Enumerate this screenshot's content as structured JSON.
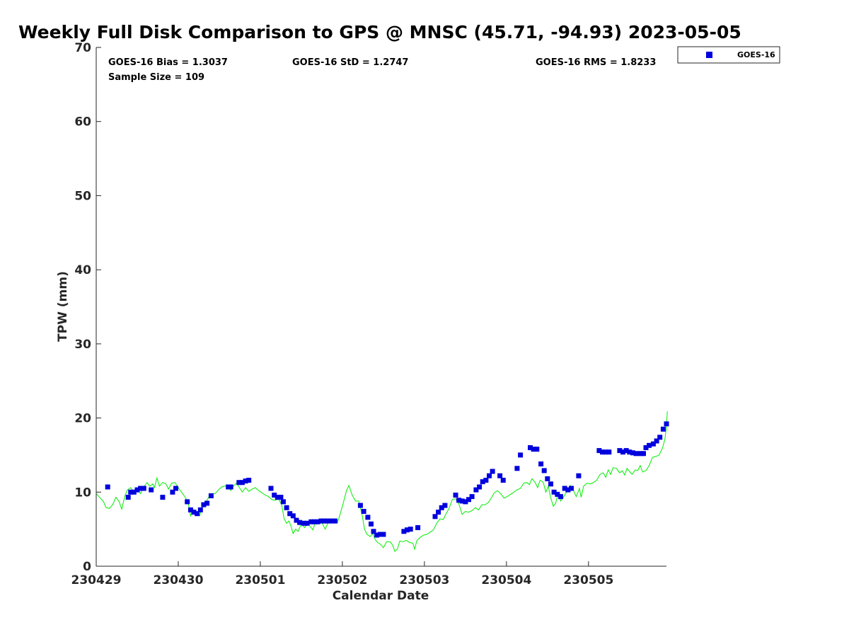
{
  "chart_data": {
    "type": "scatter",
    "title": "Weekly Full Disk Comparison to GPS @ MNSC (45.71, -94.93) 2023-05-05",
    "xlabel": "Calendar Date",
    "ylabel": "TPW (mm)",
    "xlim": [
      0,
      6.95
    ],
    "ylim": [
      0,
      70
    ],
    "yticks": [
      0,
      10,
      20,
      30,
      40,
      50,
      60,
      70
    ],
    "xtick_values": [
      0,
      1,
      2,
      3,
      4,
      5,
      6
    ],
    "xtick_labels": [
      "230429",
      "230430",
      "230501",
      "230502",
      "230503",
      "230504",
      "230505"
    ],
    "legend": {
      "position": "top-right, outside plot",
      "entries": [
        "GOES-16"
      ]
    },
    "stats": {
      "bias": "GOES-16 Bias = 1.3037",
      "std": "GOES-16 StD = 1.2747",
      "rms": "GOES-16 RMS = 1.8233",
      "sample": "Sample Size = 109"
    },
    "series": [
      {
        "name": "GOES-16",
        "kind": "scatter",
        "color": "#0000dd",
        "points": [
          [
            0.14,
            10.7
          ],
          [
            0.39,
            9.3
          ],
          [
            0.42,
            10.0
          ],
          [
            0.46,
            10.0
          ],
          [
            0.5,
            10.3
          ],
          [
            0.54,
            10.5
          ],
          [
            0.58,
            10.5
          ],
          [
            0.67,
            10.3
          ],
          [
            0.81,
            9.3
          ],
          [
            0.93,
            10.0
          ],
          [
            0.97,
            10.5
          ],
          [
            1.11,
            8.7
          ],
          [
            1.15,
            7.6
          ],
          [
            1.19,
            7.3
          ],
          [
            1.23,
            7.1
          ],
          [
            1.27,
            7.6
          ],
          [
            1.31,
            8.3
          ],
          [
            1.35,
            8.5
          ],
          [
            1.4,
            9.5
          ],
          [
            1.61,
            10.7
          ],
          [
            1.64,
            10.7
          ],
          [
            1.74,
            11.3
          ],
          [
            1.78,
            11.3
          ],
          [
            1.82,
            11.5
          ],
          [
            1.86,
            11.6
          ],
          [
            2.13,
            10.5
          ],
          [
            2.17,
            9.6
          ],
          [
            2.21,
            9.3
          ],
          [
            2.25,
            9.3
          ],
          [
            2.28,
            8.7
          ],
          [
            2.32,
            7.9
          ],
          [
            2.36,
            7.1
          ],
          [
            2.4,
            6.8
          ],
          [
            2.44,
            6.2
          ],
          [
            2.48,
            5.9
          ],
          [
            2.53,
            5.8
          ],
          [
            2.57,
            5.8
          ],
          [
            2.62,
            6.0
          ],
          [
            2.66,
            6.0
          ],
          [
            2.7,
            6.0
          ],
          [
            2.74,
            6.1
          ],
          [
            2.78,
            6.1
          ],
          [
            2.82,
            6.1
          ],
          [
            2.87,
            6.1
          ],
          [
            2.91,
            6.1
          ],
          [
            3.22,
            8.2
          ],
          [
            3.26,
            7.4
          ],
          [
            3.31,
            6.6
          ],
          [
            3.35,
            5.7
          ],
          [
            3.38,
            4.7
          ],
          [
            3.42,
            4.2
          ],
          [
            3.46,
            4.3
          ],
          [
            3.5,
            4.3
          ],
          [
            3.75,
            4.7
          ],
          [
            3.79,
            4.9
          ],
          [
            3.83,
            5.0
          ],
          [
            3.92,
            5.2
          ],
          [
            4.13,
            6.7
          ],
          [
            4.17,
            7.3
          ],
          [
            4.21,
            7.9
          ],
          [
            4.25,
            8.2
          ],
          [
            4.38,
            9.6
          ],
          [
            4.42,
            8.9
          ],
          [
            4.46,
            8.8
          ],
          [
            4.5,
            8.7
          ],
          [
            4.54,
            9.0
          ],
          [
            4.58,
            9.4
          ],
          [
            4.63,
            10.3
          ],
          [
            4.67,
            10.7
          ],
          [
            4.71,
            11.4
          ],
          [
            4.75,
            11.6
          ],
          [
            4.79,
            12.2
          ],
          [
            4.83,
            12.8
          ],
          [
            4.92,
            12.2
          ],
          [
            4.96,
            11.6
          ],
          [
            5.13,
            13.2
          ],
          [
            5.17,
            15.0
          ],
          [
            5.29,
            16.0
          ],
          [
            5.33,
            15.8
          ],
          [
            5.37,
            15.8
          ],
          [
            5.42,
            13.8
          ],
          [
            5.46,
            12.9
          ],
          [
            5.5,
            11.8
          ],
          [
            5.54,
            11.1
          ],
          [
            5.58,
            10.0
          ],
          [
            5.62,
            9.7
          ],
          [
            5.66,
            9.4
          ],
          [
            5.71,
            10.5
          ],
          [
            5.75,
            10.3
          ],
          [
            5.79,
            10.5
          ],
          [
            5.88,
            12.2
          ],
          [
            6.13,
            15.6
          ],
          [
            6.17,
            15.4
          ],
          [
            6.21,
            15.4
          ],
          [
            6.25,
            15.4
          ],
          [
            6.38,
            15.6
          ],
          [
            6.42,
            15.4
          ],
          [
            6.46,
            15.6
          ],
          [
            6.5,
            15.4
          ],
          [
            6.54,
            15.3
          ],
          [
            6.58,
            15.2
          ],
          [
            6.63,
            15.2
          ],
          [
            6.67,
            15.2
          ],
          [
            6.7,
            16.0
          ],
          [
            6.74,
            16.3
          ],
          [
            6.79,
            16.5
          ],
          [
            6.83,
            16.9
          ],
          [
            6.87,
            17.4
          ],
          [
            6.91,
            18.5
          ],
          [
            6.95,
            19.2
          ]
        ]
      },
      {
        "name": "GPS",
        "kind": "line",
        "color": "#00ee00",
        "points": [
          [
            0.0,
            9.8
          ],
          [
            0.05,
            9.2
          ],
          [
            0.09,
            8.7
          ],
          [
            0.12,
            7.9
          ],
          [
            0.16,
            7.8
          ],
          [
            0.2,
            8.3
          ],
          [
            0.24,
            9.3
          ],
          [
            0.28,
            8.7
          ],
          [
            0.31,
            7.7
          ],
          [
            0.35,
            9.5
          ],
          [
            0.38,
            10.3
          ],
          [
            0.42,
            10.6
          ],
          [
            0.46,
            10.0
          ],
          [
            0.5,
            10.4
          ],
          [
            0.54,
            9.8
          ],
          [
            0.58,
            10.7
          ],
          [
            0.62,
            11.3
          ],
          [
            0.65,
            10.8
          ],
          [
            0.69,
            11.1
          ],
          [
            0.71,
            10.6
          ],
          [
            0.74,
            11.9
          ],
          [
            0.77,
            10.8
          ],
          [
            0.81,
            11.3
          ],
          [
            0.85,
            11.1
          ],
          [
            0.88,
            10.4
          ],
          [
            0.92,
            11.2
          ],
          [
            0.96,
            11.3
          ],
          [
            1.0,
            10.6
          ],
          [
            1.04,
            10.0
          ],
          [
            1.08,
            9.4
          ],
          [
            1.12,
            8.6
          ],
          [
            1.15,
            6.8
          ],
          [
            1.18,
            7.6
          ],
          [
            1.22,
            6.9
          ],
          [
            1.26,
            6.8
          ],
          [
            1.29,
            7.9
          ],
          [
            1.33,
            8.5
          ],
          [
            1.37,
            9.3
          ],
          [
            1.41,
            9.8
          ],
          [
            1.45,
            9.8
          ],
          [
            1.49,
            10.3
          ],
          [
            1.53,
            10.7
          ],
          [
            1.56,
            10.8
          ],
          [
            1.6,
            10.9
          ],
          [
            1.64,
            10.2
          ],
          [
            1.67,
            10.8
          ],
          [
            1.71,
            11.2
          ],
          [
            1.74,
            10.7
          ],
          [
            1.78,
            10.0
          ],
          [
            1.82,
            10.6
          ],
          [
            1.86,
            10.1
          ],
          [
            1.9,
            10.4
          ],
          [
            1.94,
            10.6
          ],
          [
            1.98,
            10.2
          ],
          [
            2.02,
            9.9
          ],
          [
            2.06,
            9.6
          ],
          [
            2.1,
            9.4
          ],
          [
            2.14,
            9.0
          ],
          [
            2.18,
            8.9
          ],
          [
            2.22,
            9.1
          ],
          [
            2.26,
            8.3
          ],
          [
            2.29,
            6.4
          ],
          [
            2.32,
            5.8
          ],
          [
            2.35,
            6.1
          ],
          [
            2.38,
            5.2
          ],
          [
            2.4,
            4.4
          ],
          [
            2.43,
            5.0
          ],
          [
            2.46,
            4.7
          ],
          [
            2.5,
            5.7
          ],
          [
            2.54,
            5.2
          ],
          [
            2.58,
            5.8
          ],
          [
            2.62,
            5.2
          ],
          [
            2.64,
            4.9
          ],
          [
            2.67,
            5.9
          ],
          [
            2.71,
            6.0
          ],
          [
            2.75,
            5.9
          ],
          [
            2.79,
            5.0
          ],
          [
            2.82,
            5.7
          ],
          [
            2.86,
            6.3
          ],
          [
            2.9,
            6.0
          ],
          [
            2.94,
            5.9
          ],
          [
            2.97,
            6.9
          ],
          [
            3.01,
            8.5
          ],
          [
            3.05,
            10.2
          ],
          [
            3.08,
            10.9
          ],
          [
            3.12,
            9.6
          ],
          [
            3.16,
            8.8
          ],
          [
            3.2,
            8.8
          ],
          [
            3.24,
            7.0
          ],
          [
            3.27,
            5.0
          ],
          [
            3.3,
            4.3
          ],
          [
            3.34,
            4.0
          ],
          [
            3.37,
            4.4
          ],
          [
            3.4,
            3.6
          ],
          [
            3.43,
            3.2
          ],
          [
            3.46,
            3.0
          ],
          [
            3.5,
            2.5
          ],
          [
            3.54,
            3.3
          ],
          [
            3.58,
            3.3
          ],
          [
            3.61,
            2.9
          ],
          [
            3.64,
            2.0
          ],
          [
            3.67,
            2.3
          ],
          [
            3.7,
            3.4
          ],
          [
            3.74,
            3.3
          ],
          [
            3.78,
            3.5
          ],
          [
            3.82,
            3.2
          ],
          [
            3.86,
            3.1
          ],
          [
            3.88,
            2.3
          ],
          [
            3.91,
            3.5
          ],
          [
            3.95,
            3.9
          ],
          [
            3.99,
            4.2
          ],
          [
            4.03,
            4.3
          ],
          [
            4.07,
            4.6
          ],
          [
            4.11,
            4.9
          ],
          [
            4.15,
            5.8
          ],
          [
            4.19,
            6.4
          ],
          [
            4.23,
            6.3
          ],
          [
            4.26,
            7.0
          ],
          [
            4.3,
            7.8
          ],
          [
            4.34,
            9.0
          ],
          [
            4.38,
            9.1
          ],
          [
            4.42,
            8.4
          ],
          [
            4.46,
            7.0
          ],
          [
            4.5,
            7.4
          ],
          [
            4.54,
            7.3
          ],
          [
            4.58,
            7.5
          ],
          [
            4.62,
            7.9
          ],
          [
            4.66,
            7.6
          ],
          [
            4.7,
            8.3
          ],
          [
            4.74,
            8.3
          ],
          [
            4.78,
            8.6
          ],
          [
            4.82,
            9.3
          ],
          [
            4.85,
            9.9
          ],
          [
            4.89,
            10.2
          ],
          [
            4.93,
            9.8
          ],
          [
            4.97,
            9.2
          ],
          [
            5.01,
            9.4
          ],
          [
            5.05,
            9.7
          ],
          [
            5.09,
            10.0
          ],
          [
            5.13,
            10.3
          ],
          [
            5.17,
            10.5
          ],
          [
            5.21,
            11.2
          ],
          [
            5.25,
            11.3
          ],
          [
            5.28,
            11.0
          ],
          [
            5.31,
            11.8
          ],
          [
            5.35,
            11.3
          ],
          [
            5.38,
            10.6
          ],
          [
            5.41,
            11.6
          ],
          [
            5.45,
            11.3
          ],
          [
            5.48,
            10.0
          ],
          [
            5.51,
            10.8
          ],
          [
            5.54,
            9.2
          ],
          [
            5.57,
            8.1
          ],
          [
            5.6,
            8.5
          ],
          [
            5.63,
            9.8
          ],
          [
            5.66,
            8.8
          ],
          [
            5.7,
            9.4
          ],
          [
            5.74,
            10.2
          ],
          [
            5.78,
            10.9
          ],
          [
            5.81,
            10.4
          ],
          [
            5.85,
            9.4
          ],
          [
            5.89,
            10.5
          ],
          [
            5.91,
            9.3
          ],
          [
            5.94,
            10.8
          ],
          [
            5.98,
            11.2
          ],
          [
            6.02,
            11.1
          ],
          [
            6.06,
            11.3
          ],
          [
            6.1,
            11.6
          ],
          [
            6.14,
            12.4
          ],
          [
            6.18,
            12.6
          ],
          [
            6.21,
            12.0
          ],
          [
            6.24,
            13.0
          ],
          [
            6.27,
            12.4
          ],
          [
            6.3,
            13.3
          ],
          [
            6.34,
            13.2
          ],
          [
            6.38,
            12.6
          ],
          [
            6.41,
            12.9
          ],
          [
            6.44,
            12.3
          ],
          [
            6.47,
            13.2
          ],
          [
            6.5,
            12.8
          ],
          [
            6.53,
            12.4
          ],
          [
            6.57,
            13.0
          ],
          [
            6.6,
            12.9
          ],
          [
            6.63,
            13.6
          ],
          [
            6.66,
            12.7
          ],
          [
            6.7,
            12.9
          ],
          [
            6.74,
            13.6
          ],
          [
            6.78,
            14.7
          ],
          [
            6.82,
            14.8
          ],
          [
            6.86,
            15.0
          ],
          [
            6.9,
            15.9
          ],
          [
            6.93,
            17.1
          ],
          [
            6.95,
            18.8
          ],
          [
            6.96,
            20.9
          ]
        ]
      }
    ]
  }
}
